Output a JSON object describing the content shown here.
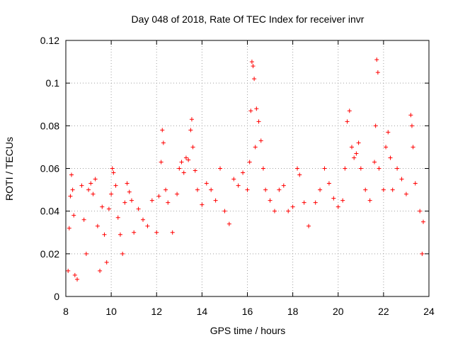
{
  "chart_data": {
    "type": "scatter",
    "title": "Day 048 of 2018, Rate Of TEC Index for receiver invr",
    "xlabel": "GPS time / hours",
    "ylabel": "ROTI / TECUs",
    "xlim": [
      8,
      24
    ],
    "ylim": [
      0,
      0.12
    ],
    "x_ticks": [
      8,
      10,
      12,
      14,
      16,
      18,
      20,
      22,
      24
    ],
    "y_ticks": [
      0,
      0.02,
      0.04,
      0.06,
      0.08,
      0.1,
      0.12
    ],
    "x_tick_labels": [
      "8",
      "10",
      "12",
      "14",
      "16",
      "18",
      "20",
      "22",
      "24"
    ],
    "y_tick_labels": [
      "0",
      "0.02",
      "0.04",
      "0.06",
      "0.08",
      "0.1",
      "0.12"
    ],
    "grid": true,
    "marker": "plus",
    "color": "#ff0000",
    "series": [
      {
        "name": "ROTI",
        "points": [
          [
            8.1,
            0.012
          ],
          [
            8.15,
            0.032
          ],
          [
            8.2,
            0.047
          ],
          [
            8.25,
            0.057
          ],
          [
            8.3,
            0.05
          ],
          [
            8.35,
            0.038
          ],
          [
            8.4,
            0.01
          ],
          [
            8.5,
            0.008
          ],
          [
            8.7,
            0.052
          ],
          [
            8.8,
            0.036
          ],
          [
            8.9,
            0.02
          ],
          [
            9.0,
            0.05
          ],
          [
            9.1,
            0.053
          ],
          [
            9.2,
            0.048
          ],
          [
            9.3,
            0.055
          ],
          [
            9.4,
            0.033
          ],
          [
            9.5,
            0.012
          ],
          [
            9.6,
            0.042
          ],
          [
            9.7,
            0.029
          ],
          [
            9.8,
            0.016
          ],
          [
            9.9,
            0.041
          ],
          [
            10.0,
            0.048
          ],
          [
            10.05,
            0.06
          ],
          [
            10.1,
            0.058
          ],
          [
            10.2,
            0.052
          ],
          [
            10.3,
            0.037
          ],
          [
            10.4,
            0.029
          ],
          [
            10.5,
            0.02
          ],
          [
            10.6,
            0.044
          ],
          [
            10.7,
            0.053
          ],
          [
            10.8,
            0.049
          ],
          [
            10.9,
            0.045
          ],
          [
            11.0,
            0.03
          ],
          [
            11.2,
            0.041
          ],
          [
            11.4,
            0.036
          ],
          [
            11.6,
            0.033
          ],
          [
            11.8,
            0.045
          ],
          [
            12.0,
            0.03
          ],
          [
            12.1,
            0.047
          ],
          [
            12.2,
            0.063
          ],
          [
            12.25,
            0.078
          ],
          [
            12.3,
            0.072
          ],
          [
            12.4,
            0.05
          ],
          [
            12.5,
            0.044
          ],
          [
            12.7,
            0.03
          ],
          [
            12.9,
            0.048
          ],
          [
            13.0,
            0.06
          ],
          [
            13.1,
            0.063
          ],
          [
            13.2,
            0.058
          ],
          [
            13.3,
            0.065
          ],
          [
            13.4,
            0.064
          ],
          [
            13.5,
            0.078
          ],
          [
            13.55,
            0.083
          ],
          [
            13.6,
            0.07
          ],
          [
            13.7,
            0.059
          ],
          [
            13.8,
            0.05
          ],
          [
            14.0,
            0.043
          ],
          [
            14.2,
            0.053
          ],
          [
            14.4,
            0.05
          ],
          [
            14.6,
            0.045
          ],
          [
            14.8,
            0.06
          ],
          [
            15.0,
            0.04
          ],
          [
            15.2,
            0.034
          ],
          [
            15.4,
            0.055
          ],
          [
            15.6,
            0.052
          ],
          [
            15.8,
            0.058
          ],
          [
            16.0,
            0.05
          ],
          [
            16.1,
            0.063
          ],
          [
            16.15,
            0.087
          ],
          [
            16.2,
            0.11
          ],
          [
            16.25,
            0.108
          ],
          [
            16.3,
            0.102
          ],
          [
            16.35,
            0.07
          ],
          [
            16.4,
            0.088
          ],
          [
            16.5,
            0.082
          ],
          [
            16.6,
            0.073
          ],
          [
            16.7,
            0.06
          ],
          [
            16.8,
            0.05
          ],
          [
            17.0,
            0.045
          ],
          [
            17.2,
            0.04
          ],
          [
            17.4,
            0.05
          ],
          [
            17.6,
            0.052
          ],
          [
            17.8,
            0.04
          ],
          [
            18.0,
            0.042
          ],
          [
            18.2,
            0.06
          ],
          [
            18.3,
            0.057
          ],
          [
            18.5,
            0.044
          ],
          [
            18.7,
            0.033
          ],
          [
            19.0,
            0.044
          ],
          [
            19.2,
            0.05
          ],
          [
            19.4,
            0.06
          ],
          [
            19.6,
            0.053
          ],
          [
            19.8,
            0.046
          ],
          [
            20.0,
            0.042
          ],
          [
            20.2,
            0.045
          ],
          [
            20.3,
            0.06
          ],
          [
            20.4,
            0.082
          ],
          [
            20.5,
            0.087
          ],
          [
            20.6,
            0.07
          ],
          [
            20.7,
            0.065
          ],
          [
            20.8,
            0.067
          ],
          [
            20.9,
            0.072
          ],
          [
            21.0,
            0.06
          ],
          [
            21.2,
            0.05
          ],
          [
            21.4,
            0.045
          ],
          [
            21.6,
            0.063
          ],
          [
            21.65,
            0.08
          ],
          [
            21.7,
            0.111
          ],
          [
            21.75,
            0.105
          ],
          [
            21.8,
            0.06
          ],
          [
            22.0,
            0.05
          ],
          [
            22.1,
            0.07
          ],
          [
            22.2,
            0.077
          ],
          [
            22.3,
            0.065
          ],
          [
            22.4,
            0.05
          ],
          [
            22.6,
            0.06
          ],
          [
            22.8,
            0.055
          ],
          [
            23.0,
            0.048
          ],
          [
            23.2,
            0.085
          ],
          [
            23.25,
            0.08
          ],
          [
            23.3,
            0.07
          ],
          [
            23.4,
            0.053
          ],
          [
            23.6,
            0.04
          ],
          [
            23.7,
            0.02
          ],
          [
            23.75,
            0.035
          ]
        ]
      }
    ]
  }
}
